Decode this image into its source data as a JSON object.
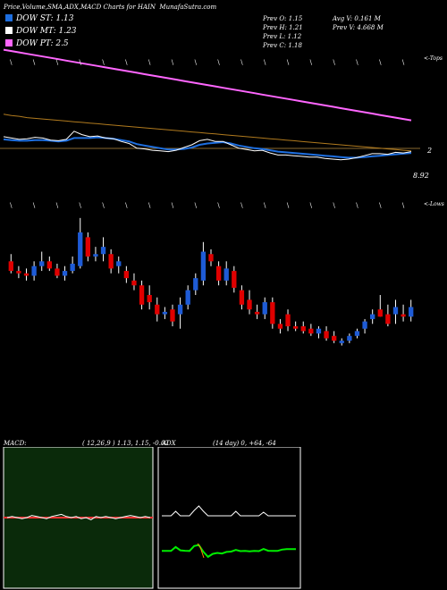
{
  "header": {
    "title": "Price,Volume,SMA,ADX,MACD Charts for HAIN",
    "site": "MunafaSutra.com"
  },
  "legend": [
    {
      "label": "DOW ST: 1.13",
      "color": "#1e6fe0"
    },
    {
      "label": "DOW MT: 1.23",
      "color": "#ffffff"
    },
    {
      "label": "DOW PT: 2.5",
      "color": "#ff66ff"
    }
  ],
  "stats": {
    "prev_open": "Prev  O: 1.15",
    "prev_high": "Prev  H: 1.21",
    "prev_low": "Prev  L: 1.12",
    "prev_close": "Prev  C: 1.18",
    "avg_volume": "Avg V: 0.161 M",
    "prev_volume": "Prev  V: 4.668 M"
  },
  "labels": {
    "tops": "<-Tops",
    "lows": "<-Lows",
    "level_2": "2",
    "level_892": "8.92"
  },
  "macd": {
    "title": "MACD:",
    "params": "( 12,26,9 ) 1.13,  1.15,  -0.02"
  },
  "adx": {
    "title": "ADX",
    "params": "(14  day) 0,  +64,  -64"
  },
  "colors": {
    "up": "#1e5bd6",
    "down": "#e00000",
    "macd_bg": "#0a2a0a",
    "adx_plus": "#00ee00",
    "adx_minus": "#ff8800"
  },
  "chart_data": {
    "type": "candlestick",
    "candles": [
      {
        "o": 1.6,
        "h": 1.63,
        "l": 1.55,
        "c": 1.56
      },
      {
        "o": 1.56,
        "h": 1.58,
        "l": 1.53,
        "c": 1.55
      },
      {
        "o": 1.55,
        "h": 1.57,
        "l": 1.52,
        "c": 1.54
      },
      {
        "o": 1.54,
        "h": 1.6,
        "l": 1.52,
        "c": 1.58
      },
      {
        "o": 1.58,
        "h": 1.64,
        "l": 1.56,
        "c": 1.6
      },
      {
        "o": 1.6,
        "h": 1.62,
        "l": 1.56,
        "c": 1.57
      },
      {
        "o": 1.57,
        "h": 1.59,
        "l": 1.53,
        "c": 1.54
      },
      {
        "o": 1.54,
        "h": 1.58,
        "l": 1.52,
        "c": 1.56
      },
      {
        "o": 1.56,
        "h": 1.62,
        "l": 1.55,
        "c": 1.59
      },
      {
        "o": 1.58,
        "h": 1.78,
        "l": 1.57,
        "c": 1.72
      },
      {
        "o": 1.7,
        "h": 1.72,
        "l": 1.6,
        "c": 1.62
      },
      {
        "o": 1.62,
        "h": 1.66,
        "l": 1.6,
        "c": 1.63
      },
      {
        "o": 1.63,
        "h": 1.7,
        "l": 1.6,
        "c": 1.66
      },
      {
        "o": 1.63,
        "h": 1.65,
        "l": 1.55,
        "c": 1.57
      },
      {
        "o": 1.58,
        "h": 1.62,
        "l": 1.55,
        "c": 1.6
      },
      {
        "o": 1.56,
        "h": 1.58,
        "l": 1.51,
        "c": 1.53
      },
      {
        "o": 1.52,
        "h": 1.55,
        "l": 1.48,
        "c": 1.5
      },
      {
        "o": 1.5,
        "h": 1.52,
        "l": 1.4,
        "c": 1.42
      },
      {
        "o": 1.46,
        "h": 1.5,
        "l": 1.4,
        "c": 1.43
      },
      {
        "o": 1.42,
        "h": 1.45,
        "l": 1.35,
        "c": 1.38
      },
      {
        "o": 1.38,
        "h": 1.41,
        "l": 1.36,
        "c": 1.39
      },
      {
        "o": 1.4,
        "h": 1.42,
        "l": 1.33,
        "c": 1.35
      },
      {
        "o": 1.38,
        "h": 1.45,
        "l": 1.32,
        "c": 1.42
      },
      {
        "o": 1.42,
        "h": 1.5,
        "l": 1.4,
        "c": 1.48
      },
      {
        "o": 1.48,
        "h": 1.55,
        "l": 1.46,
        "c": 1.53
      },
      {
        "o": 1.52,
        "h": 1.68,
        "l": 1.5,
        "c": 1.64
      },
      {
        "o": 1.63,
        "h": 1.65,
        "l": 1.58,
        "c": 1.6
      },
      {
        "o": 1.58,
        "h": 1.6,
        "l": 1.5,
        "c": 1.52
      },
      {
        "o": 1.52,
        "h": 1.6,
        "l": 1.5,
        "c": 1.57
      },
      {
        "o": 1.56,
        "h": 1.58,
        "l": 1.47,
        "c": 1.49
      },
      {
        "o": 1.48,
        "h": 1.5,
        "l": 1.4,
        "c": 1.42
      },
      {
        "o": 1.44,
        "h": 1.48,
        "l": 1.38,
        "c": 1.4
      },
      {
        "o": 1.39,
        "h": 1.42,
        "l": 1.36,
        "c": 1.38
      },
      {
        "o": 1.38,
        "h": 1.45,
        "l": 1.36,
        "c": 1.43
      },
      {
        "o": 1.43,
        "h": 1.45,
        "l": 1.32,
        "c": 1.34
      },
      {
        "o": 1.34,
        "h": 1.36,
        "l": 1.3,
        "c": 1.32
      },
      {
        "o": 1.38,
        "h": 1.4,
        "l": 1.31,
        "c": 1.33
      },
      {
        "o": 1.33,
        "h": 1.35,
        "l": 1.31,
        "c": 1.32
      },
      {
        "o": 1.33,
        "h": 1.35,
        "l": 1.3,
        "c": 1.31
      },
      {
        "o": 1.32,
        "h": 1.34,
        "l": 1.29,
        "c": 1.3
      },
      {
        "o": 1.3,
        "h": 1.33,
        "l": 1.28,
        "c": 1.32
      },
      {
        "o": 1.31,
        "h": 1.33,
        "l": 1.27,
        "c": 1.28
      },
      {
        "o": 1.29,
        "h": 1.31,
        "l": 1.26,
        "c": 1.27
      },
      {
        "o": 1.26,
        "h": 1.28,
        "l": 1.25,
        "c": 1.27
      },
      {
        "o": 1.27,
        "h": 1.3,
        "l": 1.26,
        "c": 1.29
      },
      {
        "o": 1.29,
        "h": 1.32,
        "l": 1.28,
        "c": 1.31
      },
      {
        "o": 1.32,
        "h": 1.36,
        "l": 1.3,
        "c": 1.35
      },
      {
        "o": 1.36,
        "h": 1.4,
        "l": 1.34,
        "c": 1.38
      },
      {
        "o": 1.4,
        "h": 1.46,
        "l": 1.37,
        "c": 1.37
      },
      {
        "o": 1.38,
        "h": 1.42,
        "l": 1.33,
        "c": 1.34
      },
      {
        "o": 1.38,
        "h": 1.44,
        "l": 1.34,
        "c": 1.41
      },
      {
        "o": 1.38,
        "h": 1.42,
        "l": 1.35,
        "c": 1.37
      },
      {
        "o": 1.37,
        "h": 1.44,
        "l": 1.35,
        "c": 1.41
      }
    ],
    "ylim": [
      1.2,
      1.85
    ],
    "sma_price_axis": [
      1.0,
      3.0
    ],
    "sma_pink": [
      2.9,
      2.88,
      2.86,
      2.84,
      2.82,
      2.8,
      2.78,
      2.76,
      2.74,
      2.72,
      2.7,
      2.68,
      2.66,
      2.64,
      2.62,
      2.6,
      2.58,
      2.56,
      2.54,
      2.52,
      2.5,
      2.48,
      2.46,
      2.44,
      2.42,
      2.4,
      2.38,
      2.36,
      2.34,
      2.32,
      2.3,
      2.28,
      2.26,
      2.24,
      2.22,
      2.2,
      2.18,
      2.16,
      2.14,
      2.12,
      2.1,
      2.08,
      2.06,
      2.04,
      2.02,
      2.0,
      1.98,
      1.96,
      1.94,
      1.92,
      1.9,
      1.88,
      1.86
    ],
    "sma_orange": [
      1.95,
      1.93,
      1.92,
      1.9,
      1.89,
      1.88,
      1.87,
      1.86,
      1.85,
      1.84,
      1.83,
      1.82,
      1.81,
      1.8,
      1.79,
      1.78,
      1.77,
      1.76,
      1.75,
      1.74,
      1.73,
      1.72,
      1.71,
      1.7,
      1.69,
      1.68,
      1.67,
      1.66,
      1.65,
      1.64,
      1.63,
      1.62,
      1.61,
      1.6,
      1.59,
      1.58,
      1.57,
      1.56,
      1.55,
      1.54,
      1.53,
      1.52,
      1.51,
      1.5,
      1.49,
      1.48,
      1.47,
      1.46,
      1.45,
      1.44,
      1.43,
      1.42,
      1.41
    ],
    "sma_white": [
      1.62,
      1.6,
      1.58,
      1.59,
      1.61,
      1.6,
      1.57,
      1.56,
      1.58,
      1.7,
      1.65,
      1.62,
      1.63,
      1.6,
      1.59,
      1.55,
      1.52,
      1.45,
      1.44,
      1.42,
      1.41,
      1.4,
      1.42,
      1.46,
      1.5,
      1.56,
      1.58,
      1.55,
      1.55,
      1.5,
      1.45,
      1.43,
      1.41,
      1.42,
      1.38,
      1.35,
      1.35,
      1.34,
      1.33,
      1.32,
      1.32,
      1.3,
      1.29,
      1.28,
      1.29,
      1.31,
      1.34,
      1.37,
      1.37,
      1.36,
      1.39,
      1.38,
      1.4
    ],
    "sma_blue": [
      1.58,
      1.57,
      1.56,
      1.56,
      1.57,
      1.57,
      1.56,
      1.55,
      1.56,
      1.6,
      1.6,
      1.6,
      1.61,
      1.6,
      1.59,
      1.57,
      1.55,
      1.51,
      1.49,
      1.47,
      1.45,
      1.43,
      1.43,
      1.44,
      1.46,
      1.5,
      1.52,
      1.53,
      1.54,
      1.52,
      1.49,
      1.47,
      1.45,
      1.44,
      1.42,
      1.4,
      1.39,
      1.38,
      1.37,
      1.36,
      1.35,
      1.34,
      1.33,
      1.32,
      1.31,
      1.31,
      1.32,
      1.33,
      1.34,
      1.35,
      1.36,
      1.37,
      1.38
    ],
    "macd_line": [
      0.0,
      0.01,
      0.0,
      -0.01,
      0.0,
      0.02,
      0.01,
      0.0,
      -0.01,
      0.01,
      0.02,
      0.03,
      0.01,
      0.0,
      0.01,
      -0.01,
      0.0,
      -0.02,
      0.01,
      0.0,
      0.01,
      0.0,
      -0.01,
      0.0,
      0.01,
      0.02,
      0.01,
      0.0,
      0.01,
      0.0
    ],
    "adx_di_plus": [
      0.05,
      0.05,
      0.05,
      0.3,
      0.05,
      0.05,
      0.05,
      0.35,
      0.6,
      0.3,
      0.05,
      0.05,
      0.05,
      0.05,
      0.05,
      0.05,
      0.3,
      0.05,
      0.05,
      0.05,
      0.05,
      0.05,
      0.25,
      0.05,
      0.05,
      0.05,
      0.05,
      0.05,
      0.05,
      0.05
    ],
    "adx_line": [
      0.35,
      0.35,
      0.35,
      0.55,
      0.38,
      0.36,
      0.35,
      0.6,
      0.65,
      0.3,
      0.05,
      0.2,
      0.25,
      0.22,
      0.3,
      0.32,
      0.4,
      0.34,
      0.35,
      0.33,
      0.35,
      0.34,
      0.45,
      0.36,
      0.35,
      0.35,
      0.42,
      0.44,
      0.44,
      0.44
    ]
  }
}
